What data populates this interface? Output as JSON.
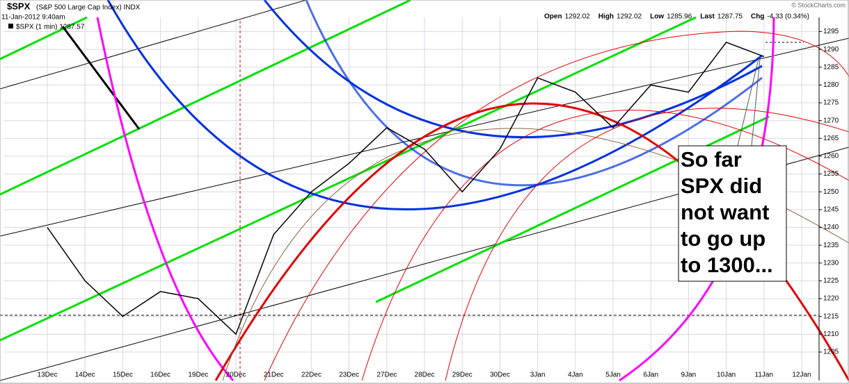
{
  "chart_data": {
    "type": "line",
    "title": "$SPX",
    "subtitle": "(S&P 500 Large Cap Index) INDX",
    "date": "11-Jan-2012 9:40am",
    "source": "© StockCharts.com",
    "quote": [
      "Open",
      "1292.02",
      "High",
      "1292.02",
      "Low",
      "1285.96",
      "Last",
      "1287.75",
      "Chg",
      "-4.33 (0.34%)"
    ],
    "annotation": [
      "So far",
      "SPX did",
      "not want",
      "to go up",
      "to 1300..."
    ],
    "categories": [
      "13Dec",
      "14Dec",
      "15Dec",
      "16Dec",
      "19Dec",
      "20Dec",
      "21Dec",
      "22Dec",
      "23Dec",
      "27Dec",
      "28Dec",
      "29Dec",
      "30Dec",
      "3Jan",
      "4Jan",
      "5Jan",
      "6Jan",
      "9Jan",
      "10Jan",
      "11Jan",
      "12Jan"
    ],
    "series": [
      {
        "name": "$SPX (1 min) 1287.57",
        "color": "#000000",
        "values": [
          1240,
          1225,
          1215,
          1222,
          1220,
          1210,
          1238,
          1250,
          1258,
          1268,
          1262,
          1250,
          1262,
          1282,
          1278,
          1268,
          1280,
          1278,
          1292,
          1288,
          null
        ]
      }
    ],
    "ylim": [
      1197,
      1299
    ],
    "yticks": [
      1205,
      1210,
      1215,
      1220,
      1225,
      1230,
      1235,
      1240,
      1245,
      1250,
      1255,
      1260,
      1265,
      1270,
      1275,
      1280,
      1285,
      1290,
      1295
    ],
    "grid": true
  }
}
